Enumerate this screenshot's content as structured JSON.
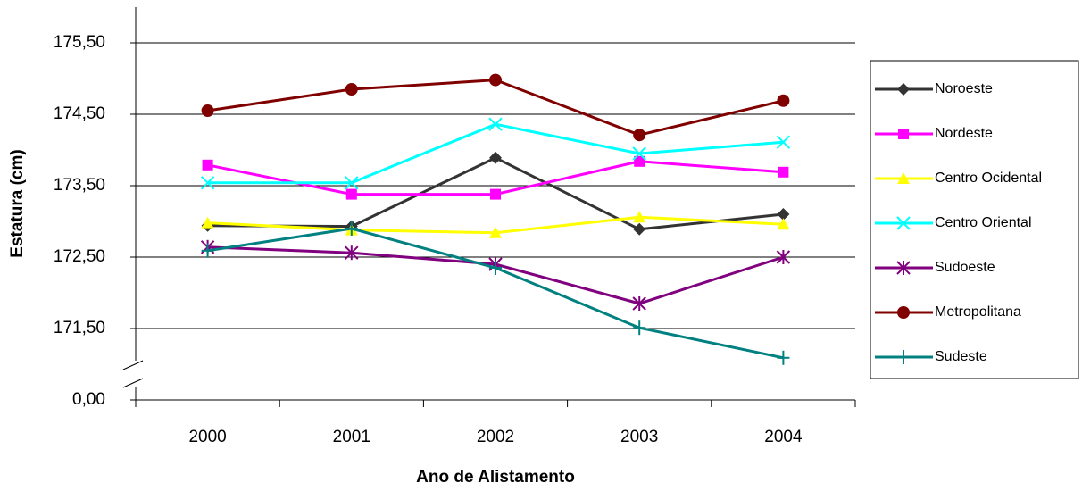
{
  "chart_data": {
    "type": "line",
    "xlabel": "Ano de Alistamento",
    "ylabel": "Estatura (cm)",
    "categories": [
      "2000",
      "2001",
      "2002",
      "2003",
      "2004"
    ],
    "ylim": [
      0,
      176
    ],
    "axis_break": true,
    "yticks": [
      {
        "value": 0,
        "label": "0,00"
      },
      {
        "value": 171.5,
        "label": "171,50"
      },
      {
        "value": 172.5,
        "label": "172,50"
      },
      {
        "value": 173.5,
        "label": "173,50"
      },
      {
        "value": 174.5,
        "label": "174,50"
      },
      {
        "value": 175.5,
        "label": "175,50"
      }
    ],
    "grid": true,
    "legend": "right",
    "series": [
      {
        "name": "Noroeste",
        "color": "#333333",
        "marker": "diamond",
        "values": [
          172.94,
          172.93,
          173.89,
          172.89,
          173.1
        ]
      },
      {
        "name": "Nordeste",
        "color": "#ff00ff",
        "marker": "square",
        "values": [
          173.79,
          173.38,
          173.38,
          173.84,
          173.69
        ]
      },
      {
        "name": "Centro Ocidental",
        "color": "#ffff00",
        "marker": "triangle",
        "values": [
          172.98,
          172.88,
          172.84,
          173.06,
          172.96
        ]
      },
      {
        "name": "Centro Oriental",
        "color": "#00ffff",
        "marker": "x",
        "values": [
          173.54,
          173.54,
          174.36,
          173.95,
          174.11
        ]
      },
      {
        "name": "Sudoeste",
        "color": "#800080",
        "marker": "asterisk",
        "values": [
          172.64,
          172.56,
          172.4,
          171.85,
          172.5
        ]
      },
      {
        "name": "Metropolitana",
        "color": "#800000",
        "marker": "circle",
        "values": [
          174.55,
          174.85,
          174.98,
          174.21,
          174.69
        ]
      },
      {
        "name": "Sudeste",
        "color": "#008080",
        "marker": "plus",
        "values": [
          172.59,
          172.9,
          172.35,
          171.51,
          171.09
        ]
      }
    ]
  }
}
